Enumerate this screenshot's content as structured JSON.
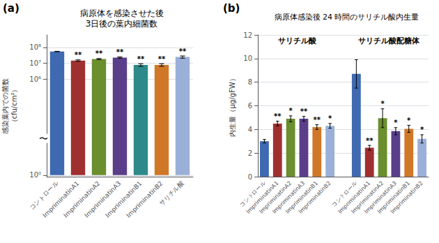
{
  "chart_data": [
    {
      "type": "bar",
      "panel_label": "(a)",
      "title": "病原体を感染させた後\n3日後の葉内細菌数",
      "ylabel": "感染葉内での菌数\n（cfu/cm²）",
      "categories": [
        "コントロール",
        "ImpriminatinA1",
        "ImpriminatinA2",
        "ImpriminatinA3",
        "ImpriminatinB1",
        "ImpriminatinB2",
        "サリチル酸"
      ],
      "values": [
        55000000.0,
        15000000.0,
        18500000.0,
        23000000.0,
        8000000.0,
        8000000.0,
        25000000.0
      ],
      "errors": [
        1500000.0,
        1500000.0,
        1500000.0,
        2000000.0,
        1500000.0,
        1500000.0,
        4000000.0
      ],
      "significance": [
        null,
        "**",
        "**",
        "**",
        "**",
        "**",
        "**"
      ],
      "colors": [
        "#3f69b0",
        "#a03030",
        "#6b8e2e",
        "#5a3e8a",
        "#2e8a8a",
        "#d07828",
        "#9ab0d8"
      ],
      "log": "y",
      "ylim": [
        0.8,
        600000000.0
      ],
      "yticks": [
        {
          "value": 1,
          "label": "10⁰"
        },
        {
          "value": 1000000.0,
          "label": "10⁶"
        },
        {
          "value": 10000000.0,
          "label": "10⁷"
        },
        {
          "value": 100000000.0,
          "label": "10⁸"
        }
      ],
      "grid": true,
      "annotations": [
        "〜"
      ]
    },
    {
      "type": "bar",
      "panel_label": "(b)",
      "title": "病原体感染後 24 時間のサリチル酸内生量",
      "ylabel": "内生量（µg/gFW）",
      "categories": [
        "コントロール",
        "ImpriminatinA1",
        "ImpriminatinA2",
        "ImpriminatinA3",
        "ImpriminatinB1",
        "ImpriminatinB2"
      ],
      "colors": [
        "#3f69b0",
        "#a03030",
        "#6b8e2e",
        "#5a3e8a",
        "#d07828",
        "#9ab0d8"
      ],
      "series": [
        {
          "name": "サリチル酸",
          "values": [
            3.0,
            4.5,
            4.9,
            4.9,
            4.2,
            4.3
          ],
          "errors": [
            0.15,
            0.2,
            0.25,
            0.2,
            0.2,
            0.2
          ],
          "significance": [
            null,
            "**",
            "*",
            "**",
            "**",
            "*"
          ]
        },
        {
          "name": "サリチル酸配糖体",
          "values": [
            8.7,
            2.45,
            4.95,
            3.85,
            4.05,
            3.2
          ],
          "errors": [
            1.2,
            0.2,
            0.8,
            0.3,
            0.3,
            0.35
          ],
          "significance": [
            null,
            "**",
            "*",
            "*",
            "*",
            "*"
          ]
        }
      ],
      "ylim": [
        0,
        12
      ],
      "yticks": [
        0,
        2,
        4,
        6,
        8,
        10,
        12
      ],
      "grid": true
    }
  ]
}
